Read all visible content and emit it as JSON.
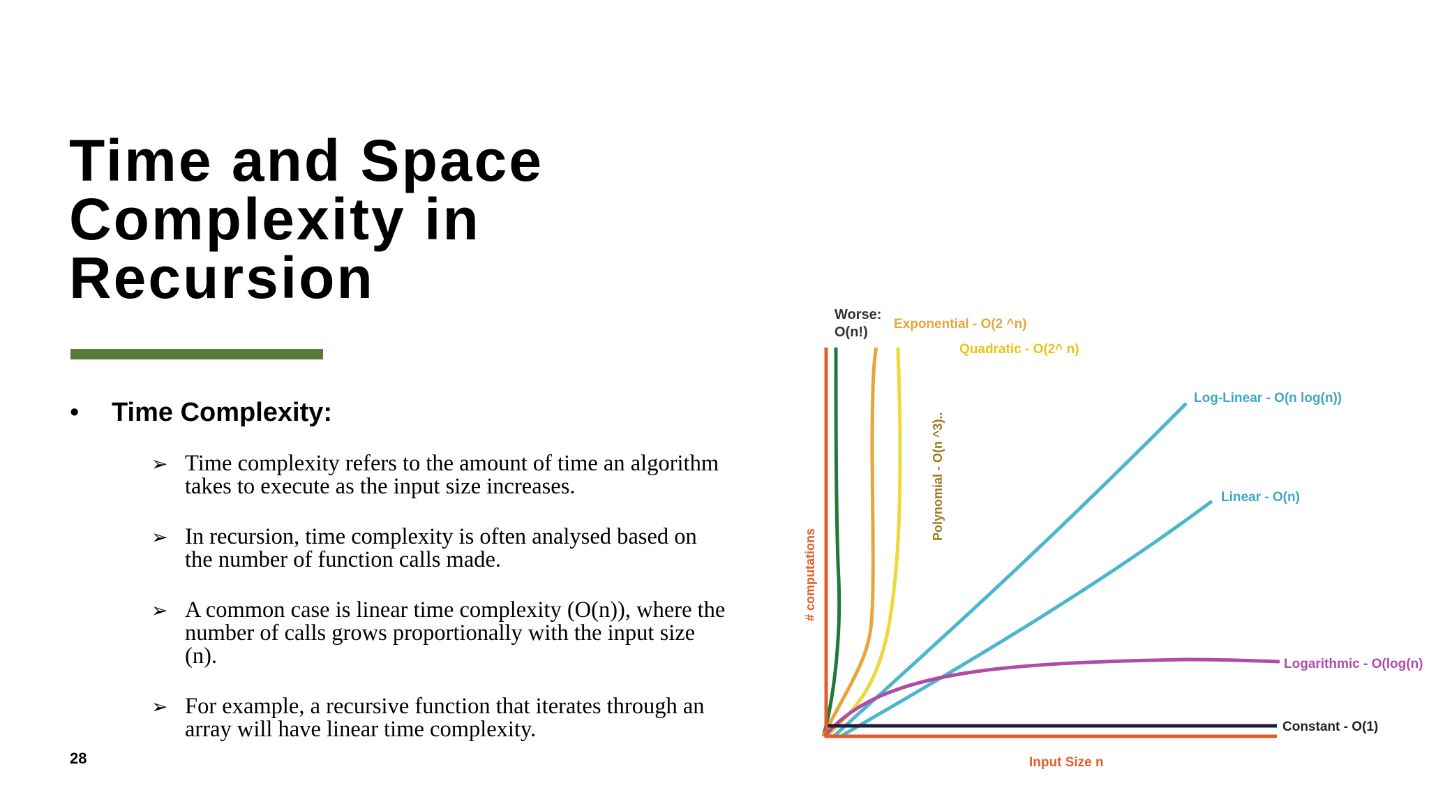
{
  "slide": {
    "title": "Time and Space\nComplexity in\nRecursion",
    "accent_color": "#5a7a3a",
    "bullet_symbol": "•",
    "heading": "Time Complexity:",
    "points": [
      {
        "marker": "➢",
        "text": "Time complexity refers to the amount of time an algorithm takes to execute as the input size increases."
      },
      {
        "marker": "➢",
        "text": "In recursion, time complexity is often analysed based on the number of function calls made."
      },
      {
        "marker": "➢",
        "text": "A common case is linear time complexity (O(n)), where the number of calls grows proportionally with the input size (n)."
      },
      {
        "marker": "➢",
        "text": "For example, a recursive function that iterates through an array will have linear time complexity."
      }
    ],
    "page_number": "28"
  },
  "chart_data": {
    "type": "line",
    "title": "",
    "xlabel": "Input Size n",
    "ylabel": "# computations",
    "axis_color": "#e35d2a",
    "series": [
      {
        "name": "Worse:\nO(n!)",
        "color": "#1f7a3a"
      },
      {
        "name": "Exponential - O(2 ^n)",
        "color": "#e8a53c"
      },
      {
        "name": "Polynomial  - O(n ^3)..",
        "color": "#9b7a1e"
      },
      {
        "name": "Quadratic - O(2^ n)",
        "color": "#ecd93c"
      },
      {
        "name": "Log-Linear - O(n log(n))",
        "color": "#4bb6cc"
      },
      {
        "name": "Linear - O(n)",
        "color": "#4bb6cc"
      },
      {
        "name": "Logarithmic - O(log(n))",
        "color": "#b04ba8"
      },
      {
        "name": "Constant - O(1)",
        "color": "#1e1e3c"
      }
    ],
    "label_colors": {
      "worse": "#333333",
      "exponential": "#e8a53c",
      "polynomial": "#9b7a1e",
      "quadratic": "#e8c31c",
      "loglinear": "#3ea7c4",
      "linear": "#3ea7c4",
      "logarithmic": "#b04ba8",
      "constant": "#222222",
      "xlabel": "#e35d2a",
      "ylabel": "#e35d2a"
    }
  }
}
